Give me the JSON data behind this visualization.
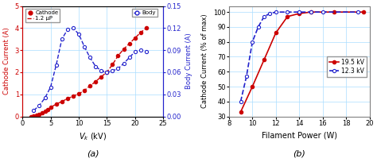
{
  "panel_a": {
    "cathode_x": [
      1.5,
      2,
      2.5,
      3,
      3.5,
      4,
      4.5,
      5,
      6,
      7,
      8,
      9,
      10,
      11,
      12,
      13,
      14,
      15,
      16,
      17,
      18,
      19,
      20,
      21,
      22
    ],
    "cathode_y": [
      0.0,
      0.02,
      0.05,
      0.08,
      0.15,
      0.22,
      0.3,
      0.42,
      0.55,
      0.68,
      0.8,
      0.92,
      1.02,
      1.18,
      1.38,
      1.58,
      1.8,
      2.0,
      2.35,
      2.75,
      3.05,
      3.3,
      3.55,
      3.8,
      4.0
    ],
    "body_x": [
      2,
      3,
      4,
      5,
      6,
      7,
      8,
      9,
      10,
      11,
      12,
      13,
      14,
      15,
      16,
      17,
      18,
      19,
      20,
      21,
      22
    ],
    "body_y": [
      0.008,
      0.015,
      0.025,
      0.04,
      0.07,
      0.105,
      0.118,
      0.12,
      0.112,
      0.095,
      0.08,
      0.068,
      0.062,
      0.06,
      0.062,
      0.065,
      0.072,
      0.08,
      0.088,
      0.09,
      0.088
    ],
    "cathode_color": "#cc0000",
    "body_color": "#2222cc",
    "xlabel": "V$_k$ (kV)",
    "ylabel_left": "Cathode Current (A)",
    "ylabel_right": "Body Current (A)",
    "xlim": [
      0,
      25
    ],
    "ylim_left": [
      0,
      5
    ],
    "ylim_right": [
      0,
      0.15
    ],
    "yticks_left": [
      0,
      1,
      2,
      3,
      4,
      5
    ],
    "yticks_right": [
      0,
      0.03,
      0.06,
      0.09,
      0.12,
      0.15
    ],
    "xticks": [
      0,
      5,
      10,
      15,
      20,
      25
    ],
    "label_a": "(a)"
  },
  "panel_b": {
    "red_x": [
      9,
      10,
      11,
      12,
      13,
      14,
      15,
      17,
      19.5
    ],
    "red_y": [
      33,
      50,
      68,
      86,
      97,
      99,
      100,
      100,
      100
    ],
    "blue_x": [
      9,
      9.5,
      10,
      10.5,
      11,
      11.5,
      12,
      13,
      14,
      15,
      16,
      19
    ],
    "blue_y": [
      40,
      57,
      80,
      90,
      97,
      99,
      100,
      100,
      100,
      100,
      100,
      100
    ],
    "red_color": "#cc0000",
    "blue_color": "#2222cc",
    "xlabel": "Filament Power (W)",
    "ylabel": "Cathode Current (% of max)",
    "xlim": [
      8,
      20
    ],
    "ylim": [
      30,
      104
    ],
    "yticks": [
      30,
      40,
      50,
      60,
      70,
      80,
      90,
      100
    ],
    "xticks": [
      8,
      10,
      12,
      14,
      16,
      18,
      20
    ],
    "label_b": "(b)",
    "legend_19": "19.5 kV",
    "legend_12": "12.3 kV"
  }
}
